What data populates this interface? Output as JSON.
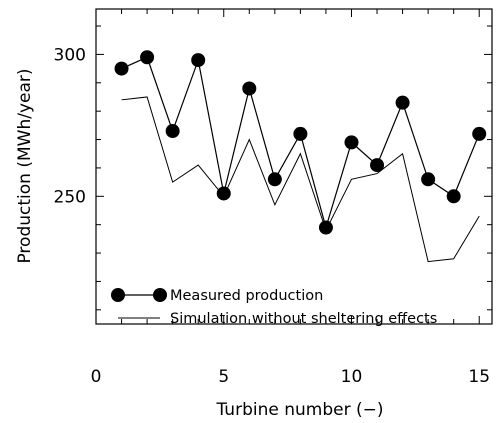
{
  "chart_data": {
    "type": "line",
    "xlabel": "Turbine number (−)",
    "ylabel": "Production (MWh/year)",
    "xlim": [
      0,
      15.5
    ],
    "ylim": [
      205,
      316
    ],
    "x_ticks": [
      "0",
      "5",
      "10",
      "15"
    ],
    "y_ticks": [
      "250",
      "300"
    ],
    "grid": false,
    "legend_position": "lower-left",
    "series": [
      {
        "name": "Measured production",
        "style": "line-with-filled-circles",
        "color": "#000000",
        "x": [
          1,
          2,
          3,
          4,
          5,
          6,
          7,
          8,
          9,
          10,
          11,
          12,
          13,
          14,
          15
        ],
        "y": [
          295,
          299,
          273,
          298,
          251,
          288,
          256,
          272,
          239,
          269,
          261,
          283,
          256,
          250,
          272
        ]
      },
      {
        "name": "Simulation without sheltering effects",
        "style": "line",
        "color": "#000000",
        "x": [
          1,
          2,
          3,
          4,
          5,
          6,
          7,
          8,
          9,
          10,
          11,
          12,
          13,
          14,
          15
        ],
        "y": [
          284,
          285,
          255,
          261,
          250,
          270,
          247,
          265,
          238,
          256,
          258,
          265,
          227,
          228,
          243
        ]
      }
    ]
  }
}
